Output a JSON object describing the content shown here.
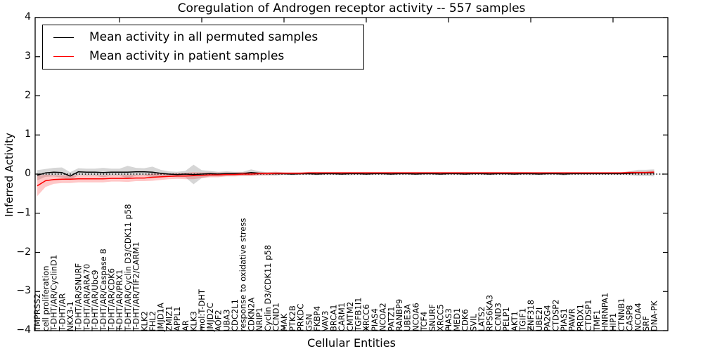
{
  "title": "Coregulation of Androgen receptor activity -- 557 samples",
  "legend": {
    "entries": [
      {
        "label": "Mean activity in all permuted samples",
        "color": "#000000"
      },
      {
        "label": "Mean activity in patient samples",
        "color": "#ff0000"
      }
    ]
  },
  "colors": {
    "axis": "#000000",
    "permuted_line": "#000000",
    "patient_line": "#ff0000",
    "permuted_band": "rgba(165,165,165,0.45)",
    "patient_band": "rgba(255,30,30,0.25)"
  },
  "chart_data": {
    "type": "line",
    "title": "Coregulation of Androgen receptor activity -- 557 samples",
    "xlabel": "Cellular Entities",
    "ylabel": "Inferred Activity",
    "ylim": [
      -4,
      4
    ],
    "yticks": [
      4,
      3,
      2,
      1,
      0,
      -1,
      -2,
      -3,
      -4
    ],
    "xticks_every": 10,
    "grid": false,
    "legend_position": "upper left",
    "zero_line_style": "dotted",
    "categories": [
      "TMPRSS2",
      "cell proliferation",
      "T-DHT/AR/CyclinD1",
      "T-DHT/AR",
      "NKX3-1",
      "T-DHT/AR/SNURF",
      "T-DHT/AR/ARA70",
      "T-DHT/AR/Ubc9",
      "T-DHT/AR/Caspase 8",
      "T-DHT/AR/CDK6",
      "T-DHT/AR/PRX1",
      "T-DHT/AR/Cyclin D3/CDK11 p58",
      "T-DHT/AR/TIF2/CARM1",
      "KLK2",
      "FHL2",
      "JMJD1A",
      "ZMIZ1",
      "APPL1",
      "AR",
      "KLK3",
      "mol:T-DHT",
      "JMJD2C",
      "AOF2",
      "UBA3",
      "CDC2L1",
      "response to oxidative stress",
      "CDKN2A",
      "NRIP1",
      "Cyclin D3/CDK11 p58",
      "CCND1",
      "MAK",
      "PTK2B",
      "PRKDC",
      "GSN",
      "FKBP4",
      "VAV3",
      "BRCA1",
      "CARM1",
      "CMTM2",
      "TGFB1I1",
      "XRCC6",
      "PIAS4",
      "NCOA2",
      "PATZ1",
      "RANBP9",
      "UBE3A",
      "NCOA6",
      "TCF4",
      "SNURF",
      "XRCC5",
      "PIAS3",
      "MED1",
      "CDK6",
      "SVIL",
      "LATS2",
      "RPS6KA3",
      "CCND3",
      "PELP1",
      "AKT1",
      "TGIF1",
      "ZNF318",
      "UBE2I",
      "PA2G4",
      "CTDSP2",
      "PIAS1",
      "PAWR",
      "PRDX1",
      "CTDSP1",
      "TMF1",
      "HNRNPA1",
      "HIP1",
      "CTNNB1",
      "CASP8",
      "NCOA4",
      "SRF",
      "DNA-PK"
    ],
    "series": [
      {
        "name": "Mean activity in all permuted samples",
        "color": "#000000",
        "band_color": "rgba(165,165,165,0.45)",
        "values": [
          -0.03,
          0.03,
          0.05,
          0.04,
          -0.05,
          0.06,
          0.05,
          0.05,
          0.04,
          0.05,
          0.05,
          0.05,
          0.06,
          0.06,
          0.05,
          0.02,
          0.0,
          -0.01,
          0.0,
          -0.01,
          0.0,
          0.01,
          0.0,
          0.01,
          0.01,
          0.01,
          0.04,
          0.02,
          0.01,
          0.01,
          0.01,
          0.0,
          0.01,
          0.01,
          0.0,
          0.01,
          0.01,
          0.0,
          0.01,
          0.01,
          0.0,
          0.01,
          0.01,
          0.0,
          0.01,
          0.01,
          0.0,
          0.01,
          0.01,
          0.0,
          0.01,
          0.01,
          0.0,
          0.01,
          0.01,
          0.0,
          0.01,
          0.01,
          0.0,
          0.01,
          0.01,
          0.0,
          0.01,
          0.01,
          0.0,
          0.01,
          0.01,
          0.01,
          0.01,
          0.01,
          0.01,
          0.01,
          0.02,
          0.03,
          0.03,
          0.03
        ],
        "band_halfwidth": [
          0.13,
          0.1,
          0.11,
          0.13,
          0.1,
          0.09,
          0.09,
          0.09,
          0.12,
          0.09,
          0.09,
          0.16,
          0.1,
          0.09,
          0.14,
          0.09,
          0.07,
          0.07,
          0.08,
          0.25,
          0.1,
          0.07,
          0.06,
          0.06,
          0.05,
          0.05,
          0.08,
          0.05,
          0.04,
          0.05,
          0.03,
          0.03,
          0.03,
          0.03,
          0.03,
          0.02,
          0.03,
          0.02,
          0.04,
          0.02,
          0.02,
          0.02,
          0.02,
          0.02,
          0.02,
          0.02,
          0.02,
          0.02,
          0.02,
          0.02,
          0.02,
          0.02,
          0.02,
          0.02,
          0.02,
          0.02,
          0.02,
          0.03,
          0.02,
          0.02,
          0.04,
          0.02,
          0.02,
          0.02,
          0.04,
          0.02,
          0.02,
          0.02,
          0.02,
          0.02,
          0.02,
          0.03,
          0.05,
          0.08,
          0.08,
          0.09
        ]
      },
      {
        "name": "Mean activity in patient samples",
        "color": "#ff0000",
        "band_color": "rgba(255,30,30,0.25)",
        "values": [
          -0.3,
          -0.17,
          -0.14,
          -0.13,
          -0.13,
          -0.12,
          -0.12,
          -0.12,
          -0.12,
          -0.11,
          -0.11,
          -0.11,
          -0.1,
          -0.1,
          -0.08,
          -0.07,
          -0.06,
          -0.05,
          -0.05,
          -0.04,
          -0.03,
          -0.02,
          -0.02,
          -0.01,
          -0.01,
          0.0,
          0.0,
          0.01,
          0.01,
          0.02,
          0.02,
          0.02,
          0.02,
          0.03,
          0.03,
          0.03,
          0.03,
          0.03,
          0.03,
          0.03,
          0.03,
          0.03,
          0.03,
          0.03,
          0.03,
          0.03,
          0.03,
          0.03,
          0.03,
          0.03,
          0.03,
          0.03,
          0.03,
          0.03,
          0.03,
          0.03,
          0.03,
          0.03,
          0.03,
          0.03,
          0.03,
          0.03,
          0.03,
          0.03,
          0.03,
          0.03,
          0.03,
          0.03,
          0.03,
          0.03,
          0.03,
          0.03,
          0.04,
          0.04,
          0.04,
          0.05
        ],
        "band_halfwidth": [
          0.26,
          0.16,
          0.11,
          0.1,
          0.1,
          0.09,
          0.09,
          0.09,
          0.09,
          0.08,
          0.08,
          0.09,
          0.08,
          0.08,
          0.09,
          0.08,
          0.07,
          0.07,
          0.08,
          0.09,
          0.07,
          0.06,
          0.06,
          0.05,
          0.05,
          0.05,
          0.05,
          0.04,
          0.04,
          0.04,
          0.03,
          0.03,
          0.03,
          0.03,
          0.03,
          0.03,
          0.03,
          0.03,
          0.03,
          0.03,
          0.03,
          0.03,
          0.03,
          0.03,
          0.03,
          0.03,
          0.03,
          0.03,
          0.03,
          0.03,
          0.03,
          0.03,
          0.03,
          0.03,
          0.03,
          0.03,
          0.03,
          0.03,
          0.03,
          0.03,
          0.02,
          0.02,
          0.02,
          0.02,
          0.02,
          0.02,
          0.02,
          0.02,
          0.02,
          0.02,
          0.02,
          0.02,
          0.03,
          0.03,
          0.03,
          0.04
        ]
      }
    ]
  }
}
